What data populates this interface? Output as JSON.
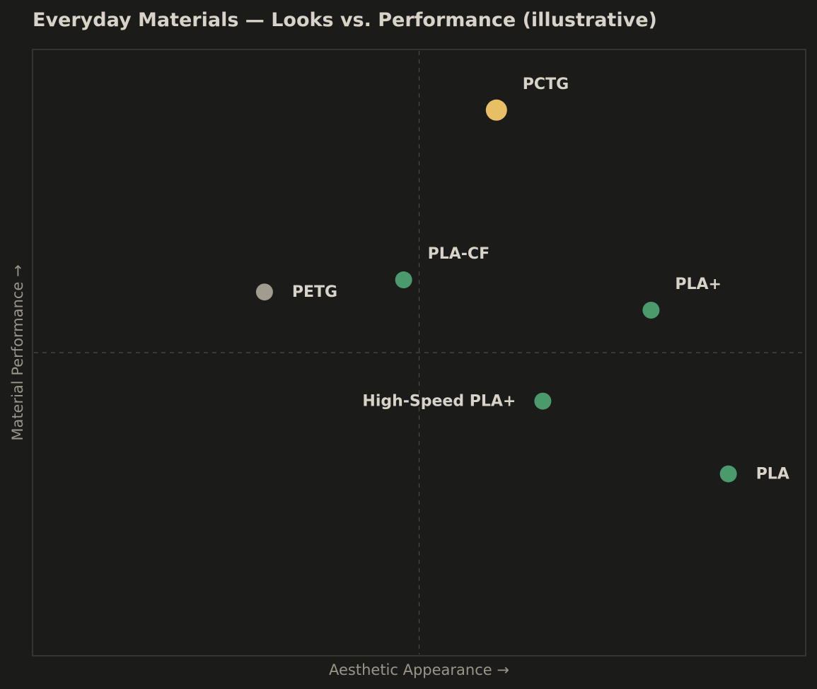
{
  "chart_data": {
    "type": "scatter",
    "title": "Everyday Materials — Looks vs. Performance (illustrative)",
    "xlabel": "Aesthetic Appearance  →",
    "ylabel": "Material Performance  →",
    "xlim": [
      0,
      10
    ],
    "ylim": [
      0,
      10
    ],
    "grid": false,
    "quadrant_lines": {
      "x": 5,
      "y": 5
    },
    "points": [
      {
        "name": "PCTG",
        "x": 6.0,
        "y": 9.0,
        "color": "#e8bf62",
        "size": "large",
        "label_side": "above-right"
      },
      {
        "name": "PLA-CF",
        "x": 4.8,
        "y": 6.2,
        "color": "#4a9a6b",
        "size": "medium",
        "label_side": "above-right"
      },
      {
        "name": "PETG",
        "x": 3.0,
        "y": 6.0,
        "color": "#a29b8f",
        "size": "medium",
        "label_side": "right"
      },
      {
        "name": "PLA+",
        "x": 8.0,
        "y": 5.7,
        "color": "#4a9a6b",
        "size": "medium",
        "label_side": "above-right"
      },
      {
        "name": "High-Speed PLA+",
        "x": 6.6,
        "y": 4.2,
        "color": "#4a9a6b",
        "size": "medium",
        "label_side": "left"
      },
      {
        "name": "PLA",
        "x": 9.0,
        "y": 3.0,
        "color": "#4a9a6b",
        "size": "medium",
        "label_side": "right"
      }
    ]
  },
  "colors": {
    "background": "#1b1b1a",
    "frame": "#3e3d3a",
    "divider": "#4a4946",
    "title": "#d8d3c8",
    "axis_label": "#9a958a",
    "point_label": "#d8d3c8"
  }
}
